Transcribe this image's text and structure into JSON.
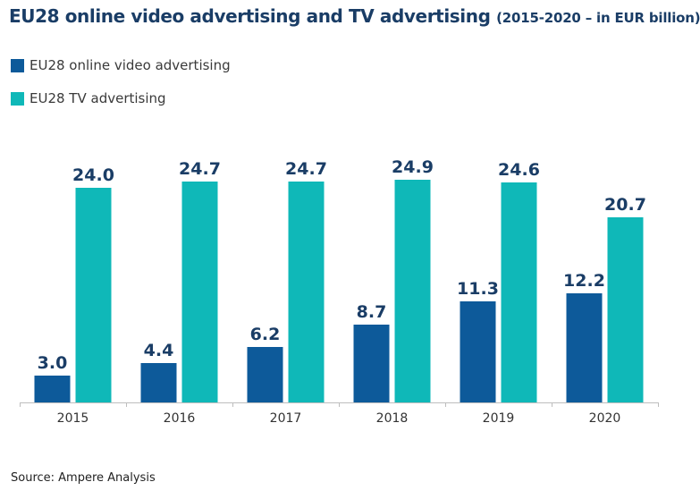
{
  "title": "EU28 online video advertising and TV advertising",
  "subtitle": "(2015-2020 – in EUR billion)",
  "source": "Source: Ampere Analysis",
  "colors": {
    "online_video": "#0d5a9a",
    "tv": "#0fb8b8",
    "value_label": "#1a3d66",
    "axis": "#bdbdbd"
  },
  "chart_data": {
    "type": "bar",
    "categories": [
      "2015",
      "2016",
      "2017",
      "2018",
      "2019",
      "2020"
    ],
    "series": [
      {
        "name": "EU28 online video advertising",
        "values": [
          3.0,
          4.4,
          6.2,
          8.7,
          11.3,
          12.2
        ]
      },
      {
        "name": "EU28 TV advertising",
        "values": [
          24.0,
          24.7,
          24.7,
          24.9,
          24.6,
          20.7
        ]
      }
    ],
    "value_labels": [
      [
        "3.0",
        "4.4",
        "6.2",
        "8.7",
        "11.3",
        "12.2"
      ],
      [
        "24.0",
        "24.7",
        "24.7",
        "24.9",
        "24.6",
        "20.7"
      ]
    ],
    "ylim": [
      0,
      25
    ],
    "grid": false,
    "legend_position": "top-left"
  }
}
